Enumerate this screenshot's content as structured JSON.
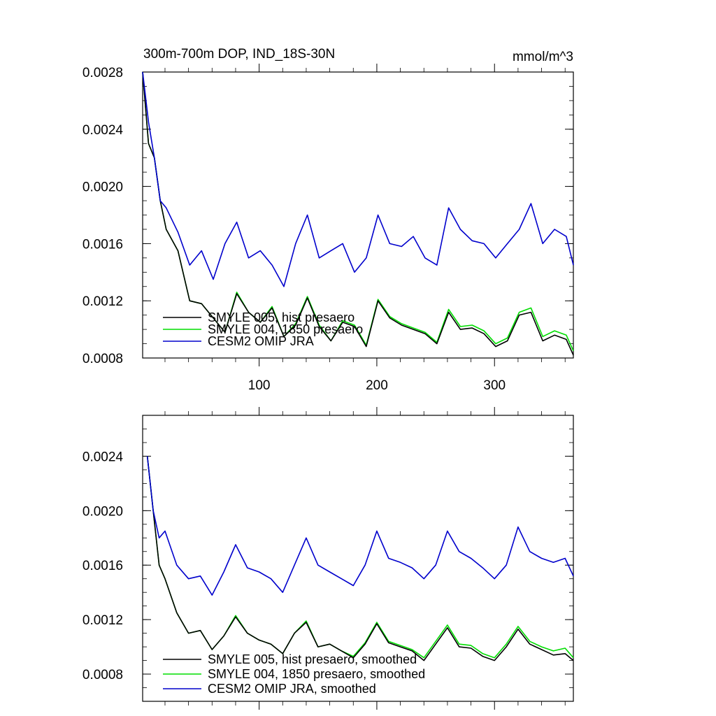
{
  "chart_data": [
    {
      "type": "line",
      "title": "300m-700m DOP, IND_18S-30N",
      "units": "mmol/m^3",
      "xlim": [
        1,
        367
      ],
      "ylim": [
        0.0008,
        0.0028
      ],
      "x_ticks": [
        "100",
        "200",
        "300"
      ],
      "y_ticks": [
        "0.0028",
        "0.0024",
        "0.0020",
        "0.0016",
        "0.0012",
        "0.0008"
      ],
      "legend_position": "bottom-left",
      "x": [
        1,
        6,
        11,
        16,
        21,
        31,
        41,
        51,
        61,
        71,
        81,
        91,
        101,
        111,
        121,
        131,
        141,
        151,
        161,
        171,
        181,
        191,
        201,
        211,
        221,
        231,
        241,
        251,
        261,
        271,
        281,
        291,
        301,
        311,
        321,
        331,
        341,
        351,
        361,
        367
      ],
      "series": [
        {
          "name": "SMYLE 005, hist presaero",
          "color": "#000000",
          "values": [
            0.0028,
            0.0023,
            0.0022,
            0.0019,
            0.0017,
            0.00155,
            0.0012,
            0.00118,
            0.00108,
            0.00098,
            0.00125,
            0.00112,
            0.00105,
            0.00115,
            0.00095,
            0.00103,
            0.00122,
            0.00102,
            0.00092,
            0.00105,
            0.00102,
            0.00088,
            0.0012,
            0.00108,
            0.00103,
            0.001,
            0.00097,
            0.0009,
            0.00112,
            0.001,
            0.00101,
            0.00097,
            0.00088,
            0.00092,
            0.0011,
            0.00112,
            0.00092,
            0.00096,
            0.00093,
            0.00082
          ]
        },
        {
          "name": "SMYLE 004, 1850 presaero",
          "color": "#00dd00",
          "values": [
            0.0028,
            0.0023,
            0.0022,
            0.0019,
            0.0017,
            0.00155,
            0.0012,
            0.00118,
            0.00108,
            0.00098,
            0.00126,
            0.00112,
            0.00105,
            0.00116,
            0.00095,
            0.00104,
            0.00123,
            0.00103,
            0.00092,
            0.00106,
            0.00103,
            0.00089,
            0.00121,
            0.00109,
            0.00104,
            0.00101,
            0.00098,
            0.00091,
            0.00114,
            0.00102,
            0.00103,
            0.00099,
            0.0009,
            0.00094,
            0.00112,
            0.00115,
            0.00095,
            0.00099,
            0.00096,
            0.00085
          ]
        },
        {
          "name": "CESM2 OMIP JRA",
          "color": "#0000cc",
          "values": [
            0.0028,
            0.00245,
            0.0022,
            0.0019,
            0.00185,
            0.00168,
            0.00145,
            0.00155,
            0.00135,
            0.0016,
            0.00175,
            0.0015,
            0.00155,
            0.00145,
            0.0013,
            0.0016,
            0.0018,
            0.0015,
            0.00155,
            0.0016,
            0.0014,
            0.0015,
            0.0018,
            0.0016,
            0.00158,
            0.00165,
            0.0015,
            0.00145,
            0.00185,
            0.0017,
            0.00162,
            0.0016,
            0.0015,
            0.0016,
            0.0017,
            0.00188,
            0.0016,
            0.0017,
            0.00165,
            0.00145
          ]
        }
      ]
    },
    {
      "type": "line",
      "title": "",
      "xlim": [
        1,
        367
      ],
      "ylim": [
        0.0006,
        0.0027
      ],
      "y_ticks": [
        "0.0024",
        "0.0020",
        "0.0016",
        "0.0012",
        "0.0008"
      ],
      "legend_position": "bottom-left",
      "x": [
        5,
        10,
        15,
        20,
        30,
        40,
        50,
        60,
        70,
        80,
        90,
        100,
        110,
        120,
        130,
        140,
        150,
        160,
        170,
        180,
        190,
        200,
        210,
        220,
        230,
        240,
        250,
        260,
        270,
        280,
        290,
        300,
        310,
        320,
        330,
        340,
        350,
        360,
        367
      ],
      "series": [
        {
          "name": "SMYLE 005, hist presaero, smoothed",
          "color": "#000000",
          "values": [
            0.0024,
            0.002,
            0.0016,
            0.0015,
            0.00125,
            0.0011,
            0.00112,
            0.00098,
            0.00108,
            0.00122,
            0.0011,
            0.00105,
            0.00102,
            0.00095,
            0.0011,
            0.00118,
            0.001,
            0.00102,
            0.00097,
            0.00092,
            0.00102,
            0.00117,
            0.00103,
            0.001,
            0.00097,
            0.0009,
            0.00102,
            0.00114,
            0.001,
            0.00099,
            0.00093,
            0.0009,
            0.001,
            0.00113,
            0.00102,
            0.00098,
            0.00094,
            0.00095,
            0.0009
          ]
        },
        {
          "name": "SMYLE 004, 1850 presaero, smoothed",
          "color": "#00dd00",
          "values": [
            0.0024,
            0.002,
            0.0016,
            0.0015,
            0.00125,
            0.0011,
            0.00112,
            0.00098,
            0.00108,
            0.00123,
            0.0011,
            0.00105,
            0.00102,
            0.00095,
            0.0011,
            0.00119,
            0.001,
            0.00102,
            0.00097,
            0.00093,
            0.00103,
            0.00118,
            0.00104,
            0.00101,
            0.00098,
            0.00092,
            0.00104,
            0.00116,
            0.00102,
            0.00101,
            0.00095,
            0.00092,
            0.00102,
            0.00115,
            0.00104,
            0.001,
            0.00097,
            0.00099,
            0.00092
          ]
        },
        {
          "name": "CESM2 OMIP JRA, smoothed",
          "color": "#0000cc",
          "values": [
            0.0024,
            0.002,
            0.0018,
            0.00185,
            0.0016,
            0.0015,
            0.00152,
            0.00138,
            0.00155,
            0.00175,
            0.00158,
            0.00155,
            0.0015,
            0.0014,
            0.0016,
            0.0018,
            0.0016,
            0.00155,
            0.0015,
            0.00145,
            0.0016,
            0.00185,
            0.00165,
            0.00162,
            0.00158,
            0.0015,
            0.0016,
            0.00185,
            0.0017,
            0.00165,
            0.00158,
            0.0015,
            0.0016,
            0.00188,
            0.0017,
            0.00165,
            0.00162,
            0.00165,
            0.00152
          ]
        }
      ]
    }
  ]
}
